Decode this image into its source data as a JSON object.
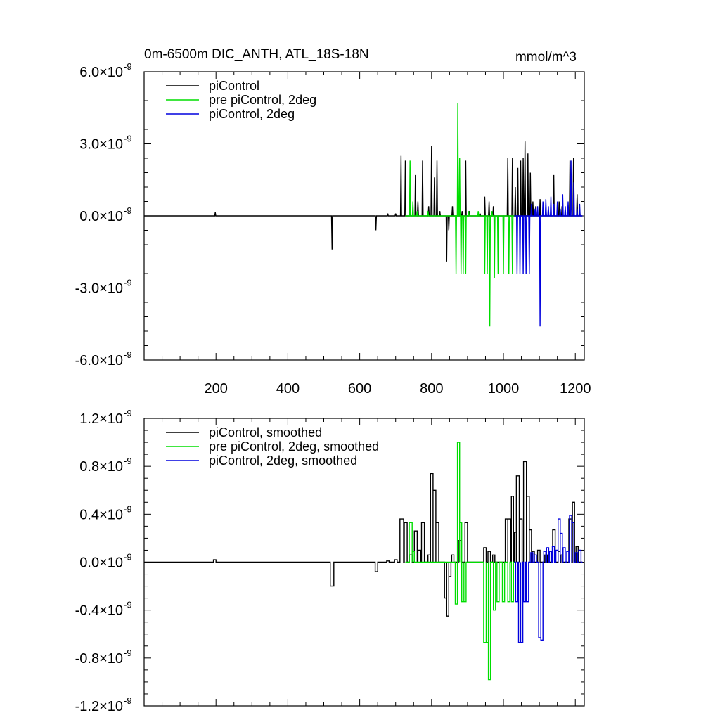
{
  "chart_data": [
    {
      "type": "line",
      "title": "0m-6500m DIC_ANTH, ATL_18S-18N",
      "units_label": "mmol/m^3",
      "xlim": [
        0,
        1225
      ],
      "ylim": [
        -6e-09,
        6e-09
      ],
      "x_ticks": [
        200,
        400,
        600,
        800,
        1000,
        1200
      ],
      "x_tick_labels": [
        "200",
        "400",
        "600",
        "800",
        "1000",
        "1200"
      ],
      "y_ticks": [
        -6e-09,
        -3e-09,
        0,
        3e-09,
        6e-09
      ],
      "y_tick_labels": [
        {
          "mant": "-6.0×10",
          "exp": "-9"
        },
        {
          "mant": "-3.0×10",
          "exp": "-9"
        },
        {
          "mant": "0.0×10",
          "exp": "-9"
        },
        {
          "mant": "3.0×10",
          "exp": "-9"
        },
        {
          "mant": "6.0×10",
          "exp": "-9"
        }
      ],
      "legend_placement": "top-left",
      "series": [
        {
          "name": "piControl",
          "color": "#000000",
          "baseline": [
            1,
            1220
          ],
          "spikes": [
            [
              198,
              0.15
            ],
            [
              523,
              -1.4
            ],
            [
              645,
              -0.6
            ],
            [
              678,
              0.1
            ],
            [
              700,
              0.1
            ],
            [
              715,
              2.5
            ],
            [
              727,
              2.3
            ],
            [
              740,
              0.4
            ],
            [
              755,
              1.7
            ],
            [
              762,
              0.6
            ],
            [
              775,
              2.3
            ],
            [
              792,
              0.4
            ],
            [
              800,
              2.9
            ],
            [
              808,
              1.6
            ],
            [
              815,
              2.3
            ],
            [
              823,
              0.2
            ],
            [
              842,
              -1.9
            ],
            [
              848,
              -0.6
            ],
            [
              858,
              0.4
            ],
            [
              878,
              1.2
            ],
            [
              885,
              0.2
            ],
            [
              895,
              2.3
            ],
            [
              905,
              0.2
            ],
            [
              935,
              0.1
            ],
            [
              948,
              0.8
            ],
            [
              960,
              0.6
            ],
            [
              972,
              0.4
            ],
            [
              1012,
              2.4
            ],
            [
              1025,
              2.4
            ],
            [
              1033,
              1.2
            ],
            [
              1040,
              2.0
            ],
            [
              1048,
              2.3
            ],
            [
              1055,
              2.4
            ],
            [
              1060,
              3.1
            ],
            [
              1068,
              2.6
            ],
            [
              1075,
              1.8
            ],
            [
              1082,
              0.6
            ],
            [
              1090,
              0.4
            ],
            [
              1102,
              0.7
            ],
            [
              1118,
              0.4
            ],
            [
              1140,
              1.7
            ],
            [
              1155,
              0.6
            ],
            [
              1163,
              0.4
            ],
            [
              1185,
              2.3
            ],
            [
              1195,
              2.4
            ],
            [
              1205,
              0.9
            ],
            [
              1212,
              0.3
            ]
          ]
        },
        {
          "name": "pre piControl, 2deg",
          "color": "#00dd00",
          "baseline": [
            727,
            1030
          ],
          "spikes": [
            [
              740,
              2.3
            ],
            [
              748,
              0.6
            ],
            [
              760,
              0.2
            ],
            [
              790,
              0.2
            ],
            [
              868,
              -2.4
            ],
            [
              873,
              4.7
            ],
            [
              878,
              2.4
            ],
            [
              882,
              -2.4
            ],
            [
              888,
              -2.4
            ],
            [
              895,
              -2.4
            ],
            [
              903,
              0.2
            ],
            [
              930,
              0.2
            ],
            [
              948,
              -2.4
            ],
            [
              955,
              -2.4
            ],
            [
              962,
              -4.6
            ],
            [
              968,
              0.2
            ],
            [
              975,
              -2.6
            ],
            [
              985,
              -2.4
            ],
            [
              1000,
              -2.4
            ],
            [
              1015,
              -2.4
            ],
            [
              1025,
              -2.4
            ]
          ]
        },
        {
          "name": "piControl, 2deg",
          "color": "#0000dd",
          "baseline": [
            1030,
            1220
          ],
          "spikes": [
            [
              1038,
              -2.4
            ],
            [
              1046,
              -2.4
            ],
            [
              1055,
              -2.4
            ],
            [
              1063,
              -2.4
            ],
            [
              1072,
              -2.4
            ],
            [
              1078,
              0.5
            ],
            [
              1088,
              0.3
            ],
            [
              1095,
              0.4
            ],
            [
              1102,
              -4.6
            ],
            [
              1110,
              0.6
            ],
            [
              1118,
              0.7
            ],
            [
              1125,
              0.4
            ],
            [
              1132,
              0.8
            ],
            [
              1140,
              0.5
            ],
            [
              1150,
              0.6
            ],
            [
              1158,
              0.3
            ],
            [
              1165,
              0.9
            ],
            [
              1172,
              0.4
            ],
            [
              1180,
              0.6
            ],
            [
              1188,
              2.3
            ],
            [
              1196,
              1.4
            ],
            [
              1205,
              0.3
            ],
            [
              1212,
              0.5
            ]
          ]
        }
      ]
    },
    {
      "type": "line",
      "title": "",
      "xlim": [
        0,
        1225
      ],
      "ylim": [
        -1.2e-09,
        1.2e-09
      ],
      "x_ticks": [
        200,
        400,
        600,
        800,
        1000,
        1200
      ],
      "x_tick_labels": [],
      "y_ticks": [
        -1.2e-09,
        -8e-10,
        -4e-10,
        0,
        4e-10,
        8e-10,
        1.2e-09
      ],
      "y_tick_labels": [
        {
          "mant": "-1.2×10",
          "exp": "-9"
        },
        {
          "mant": "-0.8×10",
          "exp": "-9"
        },
        {
          "mant": "-0.4×10",
          "exp": "-9"
        },
        {
          "mant": "0.0×10",
          "exp": "-9"
        },
        {
          "mant": "0.4×10",
          "exp": "-9"
        },
        {
          "mant": "0.8×10",
          "exp": "-9"
        },
        {
          "mant": "1.2×10",
          "exp": "-9"
        }
      ],
      "legend_placement": "top-left",
      "series": [
        {
          "name": "piControl, smoothed",
          "color": "#000000",
          "baseline": [
            1,
            1220
          ],
          "blocks": [
            [
              193,
              200,
              0.02
            ],
            [
              518,
              528,
              -0.2
            ],
            [
              643,
              650,
              -0.08
            ],
            [
              675,
              682,
              0.01
            ],
            [
              697,
              704,
              0.02
            ],
            [
              712,
              722,
              0.36
            ],
            [
              724,
              732,
              0.33
            ],
            [
              738,
              746,
              0.06
            ],
            [
              752,
              760,
              0.26
            ],
            [
              762,
              770,
              0.1
            ],
            [
              772,
              780,
              0.33
            ],
            [
              790,
              796,
              0.06
            ],
            [
              797,
              804,
              0.74
            ],
            [
              804,
              812,
              0.6
            ],
            [
              812,
              820,
              0.33
            ],
            [
              836,
              842,
              -0.3
            ],
            [
              842,
              848,
              -0.45
            ],
            [
              848,
              854,
              -0.12
            ],
            [
              856,
              862,
              0.06
            ],
            [
              875,
              882,
              0.18
            ],
            [
              893,
              900,
              0.33
            ],
            [
              945,
              952,
              0.12
            ],
            [
              957,
              964,
              0.09
            ],
            [
              970,
              976,
              0.06
            ],
            [
              1005,
              1012,
              0.36
            ],
            [
              1012,
              1020,
              0.36
            ],
            [
              1022,
              1028,
              0.55
            ],
            [
              1030,
              1036,
              0.25
            ],
            [
              1036,
              1044,
              0.72
            ],
            [
              1044,
              1052,
              0.36
            ],
            [
              1056,
              1064,
              0.84
            ],
            [
              1064,
              1072,
              0.55
            ],
            [
              1072,
              1078,
              0.27
            ],
            [
              1080,
              1086,
              0.09
            ],
            [
              1095,
              1102,
              0.1
            ],
            [
              1115,
              1122,
              0.06
            ],
            [
              1137,
              1144,
              0.27
            ],
            [
              1152,
              1158,
              0.09
            ],
            [
              1160,
              1166,
              0.06
            ],
            [
              1182,
              1190,
              0.36
            ],
            [
              1192,
              1198,
              0.5
            ],
            [
              1202,
              1208,
              0.13
            ]
          ]
        },
        {
          "name": "pre piControl, 2deg, smoothed",
          "color": "#00dd00",
          "baseline": [
            727,
            1030
          ],
          "blocks": [
            [
              738,
              746,
              0.33
            ],
            [
              746,
              752,
              0.09
            ],
            [
              866,
              872,
              -0.35
            ],
            [
              872,
              878,
              1.0
            ],
            [
              878,
              884,
              0.33
            ],
            [
              884,
              890,
              -0.33
            ],
            [
              890,
              896,
              -0.33
            ],
            [
              945,
              952,
              -0.67
            ],
            [
              952,
              958,
              -0.67
            ],
            [
              958,
              964,
              -0.98
            ],
            [
              972,
              978,
              -0.4
            ],
            [
              982,
              988,
              -0.33
            ],
            [
              997,
              1003,
              -0.33
            ],
            [
              1012,
              1018,
              -0.33
            ],
            [
              1022,
              1028,
              -0.33
            ]
          ]
        },
        {
          "name": "piControl, 2deg, smoothed",
          "color": "#0000dd",
          "baseline": [
            1030,
            1220
          ],
          "blocks": [
            [
              1034,
              1040,
              -0.33
            ],
            [
              1042,
              1048,
              -0.67
            ],
            [
              1048,
              1054,
              -0.67
            ],
            [
              1056,
              1062,
              -0.33
            ],
            [
              1064,
              1070,
              -0.33
            ],
            [
              1076,
              1082,
              0.08
            ],
            [
              1086,
              1092,
              0.06
            ],
            [
              1098,
              1104,
              -0.63
            ],
            [
              1104,
              1110,
              -0.65
            ],
            [
              1112,
              1118,
              0.09
            ],
            [
              1120,
              1126,
              0.12
            ],
            [
              1128,
              1134,
              0.09
            ],
            [
              1136,
              1142,
              0.13
            ],
            [
              1146,
              1152,
              0.1
            ],
            [
              1152,
              1158,
              0.36
            ],
            [
              1158,
              1164,
              0.24
            ],
            [
              1166,
              1172,
              0.12
            ],
            [
              1176,
              1182,
              0.09
            ],
            [
              1184,
              1190,
              0.39
            ],
            [
              1190,
              1196,
              0.33
            ],
            [
              1200,
              1206,
              0.08
            ],
            [
              1210,
              1216,
              0.1
            ]
          ]
        }
      ]
    }
  ]
}
